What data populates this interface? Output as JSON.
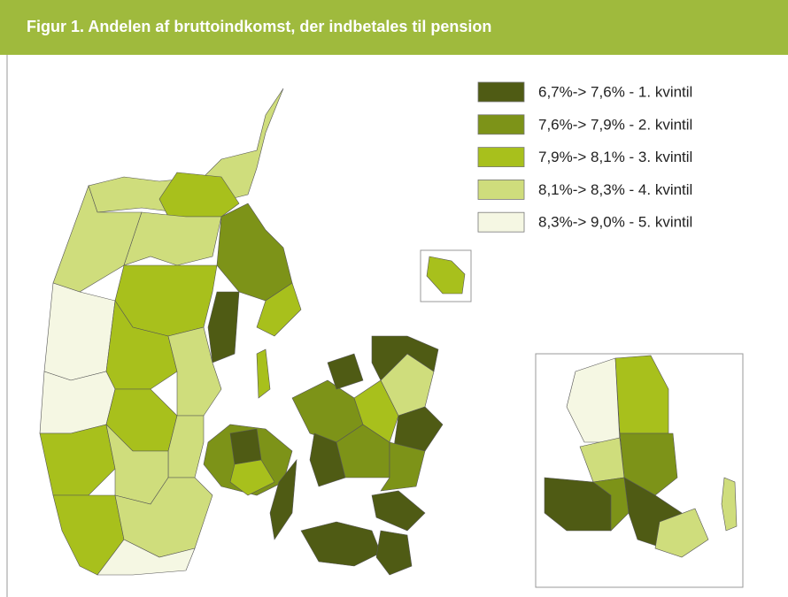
{
  "header": {
    "title": "Figur 1. Andelen af bruttoindkomst, der indbetales til pension"
  },
  "legend": {
    "items": [
      {
        "label": "6,7%-> 7,6% - 1. kvintil",
        "color": "#4f5b14"
      },
      {
        "label": "7,6%-> 7,9% - 2. kvintil",
        "color": "#7d9318"
      },
      {
        "label": "7,9%-> 8,1% - 3. kvintil",
        "color": "#a8c01c"
      },
      {
        "label": "8,1%-> 8,3% - 4. kvintil",
        "color": "#cfdd7c"
      },
      {
        "label": "8,3%-> 9,0% - 5. kvintil",
        "color": "#f5f7e3"
      }
    ]
  }
}
